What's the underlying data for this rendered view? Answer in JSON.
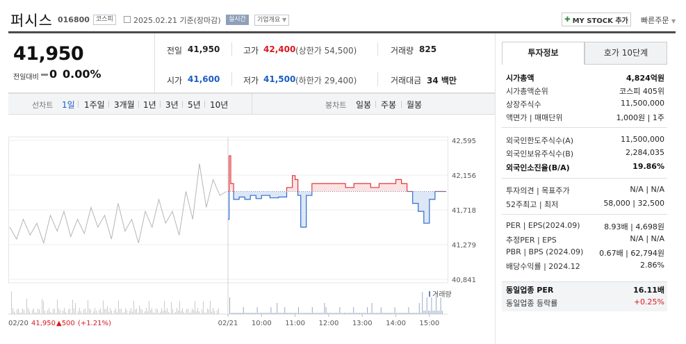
{
  "header": {
    "stock_name": "퍼시스",
    "stock_code": "016800",
    "market": "코스피",
    "date_text": "2025.02.21 기준(장마감)",
    "live_tag": "실시간",
    "company_info_tag": "기업개요",
    "mystock_label": "MY STOCK 추가",
    "quick_order": "빠른주문"
  },
  "summary": {
    "price": "41,950",
    "change_label": "전일대비",
    "change_value": "0",
    "change_pct": "0.00%"
  },
  "stats": {
    "prev_label": "전일",
    "prev_value": "41,950",
    "high_label": "고가",
    "high_value": "42,400",
    "upper_limit": "(상한가 54,500)",
    "volume_label": "거래량",
    "volume_value": "825",
    "open_label": "시가",
    "open_value": "41,600",
    "low_label": "저가",
    "low_value": "41,500",
    "lower_limit": "(하한가 29,400)",
    "amount_label": "거래대금",
    "amount_value": "34 백만"
  },
  "toolbar": {
    "line_chart_label": "선차트",
    "line_periods": [
      "1일",
      "1주일",
      "3개월",
      "1년",
      "3년",
      "5년",
      "10년"
    ],
    "candle_chart_label": "봉차트",
    "candle_periods": [
      "일봉",
      "주봉",
      "월봉"
    ]
  },
  "chart_data": {
    "type": "line",
    "title": "",
    "prev_close": 41950,
    "y_ticks": [
      "42,595",
      "42,156",
      "41,718",
      "41,279",
      "40,841"
    ],
    "ylim": [
      40841,
      42595
    ],
    "x_ticks": [
      "02/21",
      "10:00",
      "11:00",
      "12:00",
      "13:00",
      "14:00",
      "15:00"
    ],
    "volume_legend": "거래량",
    "prev_day_series": {
      "name": "02/20",
      "values": [
        41500,
        41350,
        41600,
        41400,
        41550,
        41300,
        41650,
        41450,
        41700,
        41380,
        41600,
        41420,
        41750,
        41500,
        41650,
        41350,
        41800,
        41450,
        41600,
        41300,
        41700,
        41500,
        41850,
        41550,
        41700,
        41400,
        41950,
        41600,
        42300,
        41750,
        42100,
        41900,
        41950
      ]
    },
    "intraday_series": {
      "name": "02/21",
      "times": [
        "09:00",
        "09:02",
        "09:05",
        "09:10",
        "09:20",
        "09:30",
        "09:40",
        "09:50",
        "10:00",
        "10:15",
        "10:30",
        "10:45",
        "10:55",
        "11:00",
        "11:05",
        "11:10",
        "11:20",
        "11:30",
        "11:45",
        "12:00",
        "12:15",
        "12:30",
        "12:45",
        "13:00",
        "13:15",
        "13:30",
        "13:45",
        "14:00",
        "14:10",
        "14:20",
        "14:30",
        "14:40",
        "14:50",
        "15:00",
        "15:10",
        "15:20",
        "15:30"
      ],
      "values": [
        41600,
        42400,
        42050,
        41850,
        41880,
        41850,
        41900,
        41860,
        41900,
        41870,
        41880,
        42000,
        42150,
        42100,
        41900,
        41500,
        41900,
        42050,
        42050,
        42050,
        42050,
        42000,
        42050,
        42050,
        42000,
        42050,
        42050,
        42100,
        42050,
        41950,
        41800,
        41700,
        41550,
        41850,
        41950,
        41950,
        41950
      ]
    },
    "footer_date": "02/20",
    "footer_price": "41,950",
    "footer_change": "▲500",
    "footer_pct": "(+1.21%)"
  },
  "right_panel": {
    "tabs": [
      "투자정보",
      "호가 10단계"
    ],
    "rows": [
      {
        "k": "시가총액",
        "v": "4,824억원"
      },
      {
        "k": "시가총액순위",
        "v": "코스피 405위"
      },
      {
        "k": "상장주식수",
        "v": "11,500,000"
      },
      {
        "k": "액면가 | 매매단위",
        "v": "1,000원 | 1주"
      },
      {
        "k": "외국인한도주식수(A)",
        "v": "11,500,000"
      },
      {
        "k": "외국인보유주식수(B)",
        "v": "2,284,035"
      },
      {
        "k": "외국인소진율(B/A)",
        "v": "19.86%"
      },
      {
        "k": "투자의견 | 목표주가",
        "v": "N/A | N/A"
      },
      {
        "k": "52주최고 | 최저",
        "v": "58,000 | 32,500"
      },
      {
        "k": "PER | EPS(2024.09)",
        "v": "8.93배 | 4,698원"
      },
      {
        "k": "추정PER | EPS",
        "v": "N/A | N/A"
      },
      {
        "k": "PBR | BPS (2024.09)",
        "v": "0.67배 | 62,794원"
      },
      {
        "k": "배당수익률 | 2024.12",
        "v": "2.86%"
      },
      {
        "k": "동일업종 PER",
        "v": "16.11배"
      },
      {
        "k": "동일업종 등락률",
        "v": "+0.25%"
      }
    ]
  }
}
